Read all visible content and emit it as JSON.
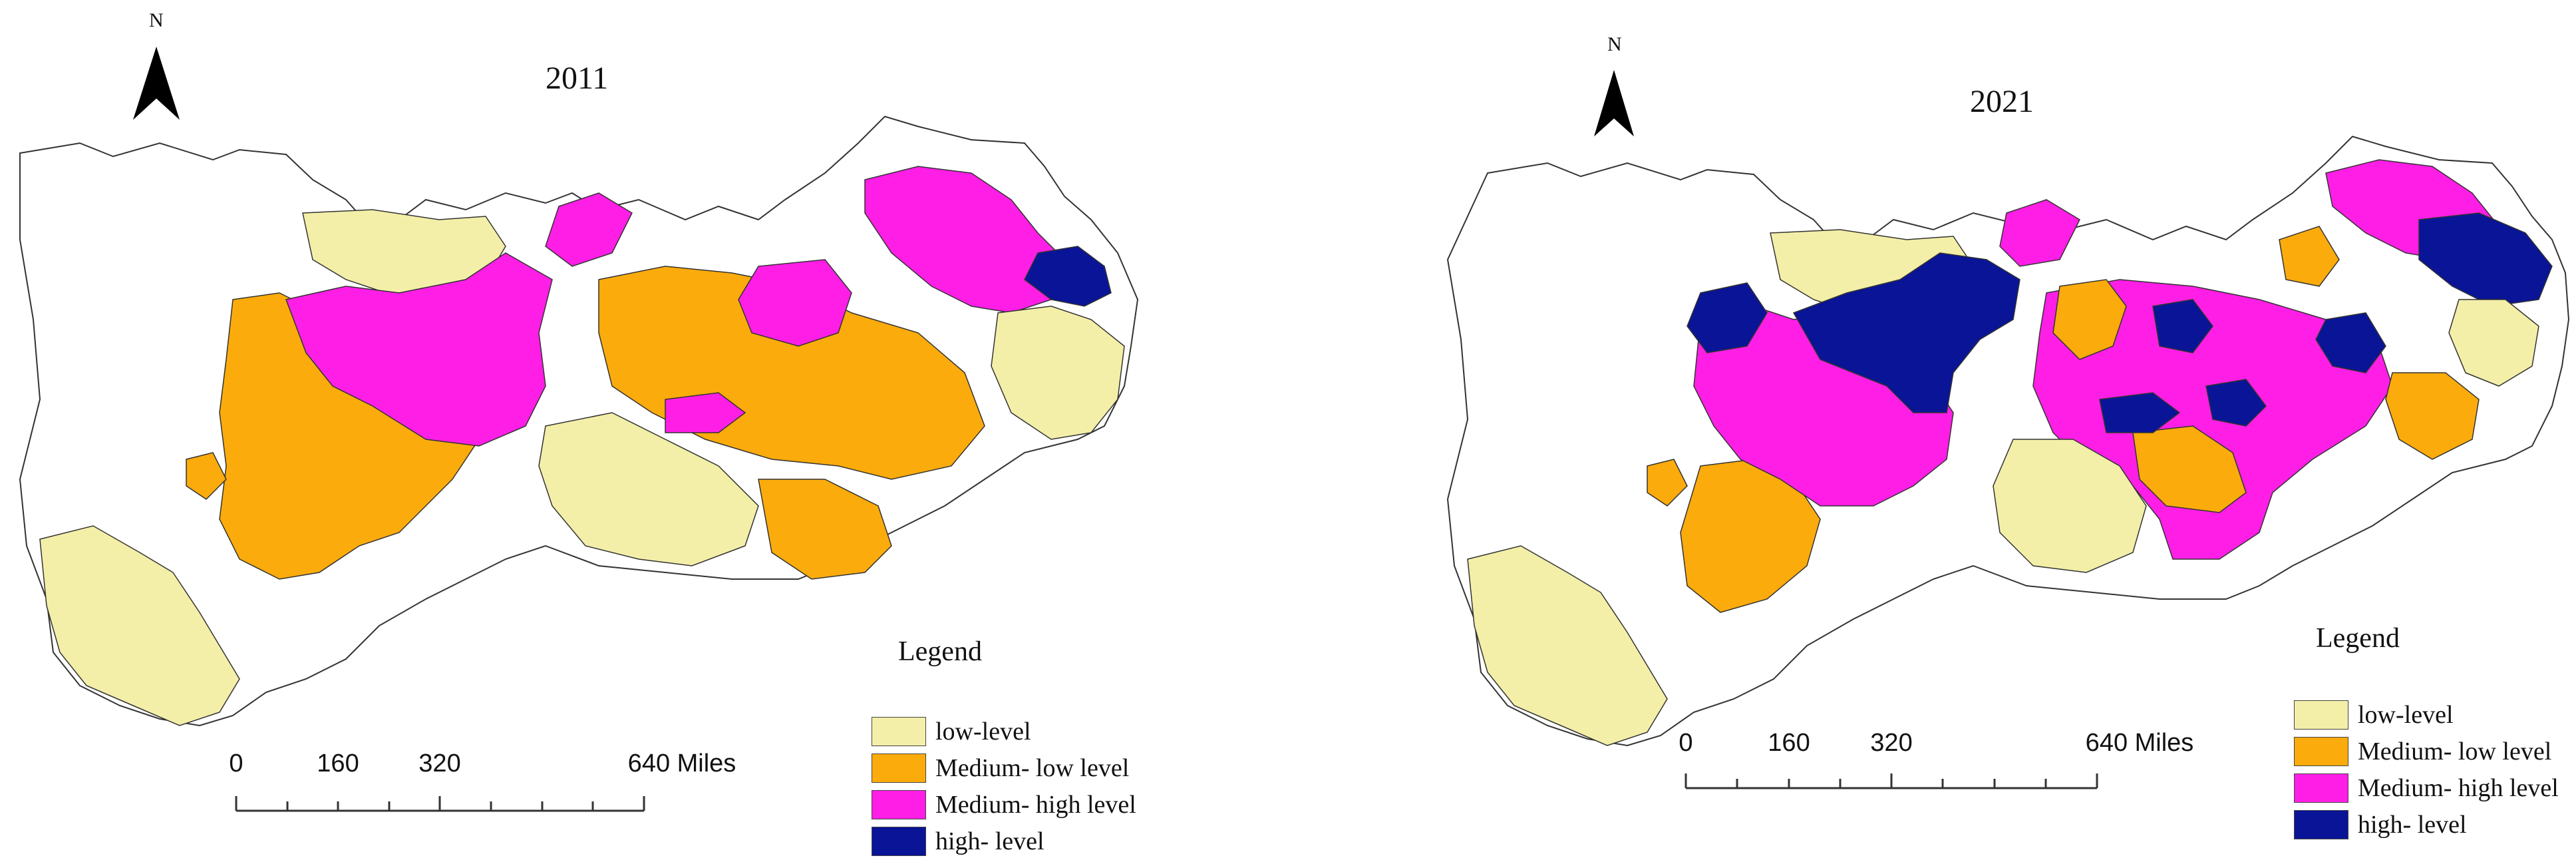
{
  "colors": {
    "low_level": "#f3efa8",
    "medium_low_level": "#fbab0b",
    "medium_high_level": "#ff1ee6",
    "high_level": "#0a1496",
    "no_data": "#ffffff",
    "boundary": "#333333"
  },
  "panels": [
    {
      "year": "2011",
      "north_label": "N",
      "legend": {
        "title": "Legend",
        "items": [
          {
            "label": "low-level",
            "color": "#f3efa8"
          },
          {
            "label": "Medium- low level",
            "color": "#fbab0b"
          },
          {
            "label": "Medium- high level",
            "color": "#ff1ee6"
          },
          {
            "label": "high- level",
            "color": "#0a1496"
          }
        ]
      },
      "scale_bar": {
        "labels": [
          "0",
          "160",
          "320",
          "640 Miles"
        ]
      }
    },
    {
      "year": "2021",
      "north_label": "N",
      "legend": {
        "title": "Legend",
        "items": [
          {
            "label": "low-level",
            "color": "#f3efa8"
          },
          {
            "label": "Medium- low level",
            "color": "#fbab0b"
          },
          {
            "label": "Medium- high level",
            "color": "#ff1ee6"
          },
          {
            "label": "high- level",
            "color": "#0a1496"
          }
        ]
      },
      "scale_bar": {
        "labels": [
          "0",
          "160",
          "320",
          "640 Miles"
        ]
      }
    }
  ]
}
